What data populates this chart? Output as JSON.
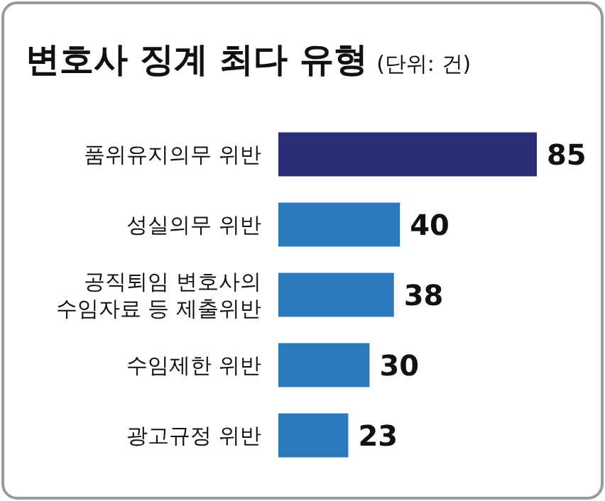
{
  "chart_data": {
    "type": "bar",
    "orientation": "horizontal",
    "title": "변호사 징계 최다 유형",
    "subtitle": "(단위: 건)",
    "categories": [
      "품위유지의무 위반",
      "성실의무 위반",
      "공직퇴임 변호사의 수임자료 등 제출위반",
      "수임제한 위반",
      "광고규정 위반"
    ],
    "values": [
      85,
      40,
      38,
      30,
      23
    ],
    "colors": [
      "#2b2c78",
      "#2a7abd",
      "#2a7abd",
      "#2a7abd",
      "#2a7abd"
    ],
    "data_labels": true
  }
}
